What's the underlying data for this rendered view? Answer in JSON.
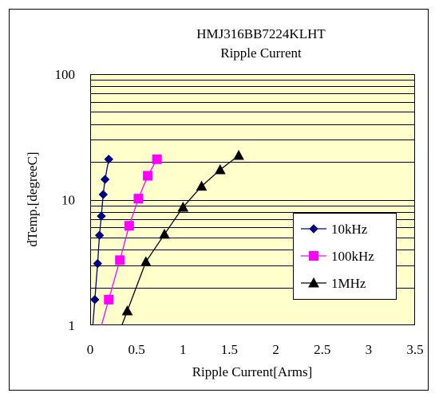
{
  "chart_data": {
    "type": "line",
    "title": "HMJ316BB7224KLHT",
    "subtitle": "Ripple Current",
    "xlabel": "Ripple Current[Arms]",
    "ylabel": "dTemp.[degreeC]",
    "xlim": [
      0,
      3.5
    ],
    "ylim": [
      1,
      100
    ],
    "yscale": "log",
    "x_ticks": [
      "0",
      "0.5",
      "1",
      "1.5",
      "2",
      "2.5",
      "3",
      "3.5"
    ],
    "y_ticks": [
      "1",
      "10",
      "100"
    ],
    "grid": "horizontal minor log gridlines",
    "legend_position": "inside-bottom-right",
    "plot_background": "#ffffcc",
    "series": [
      {
        "name": "10kHz",
        "color": "#000080",
        "marker": "diamond",
        "points": [
          [
            0.05,
            1.6
          ],
          [
            0.08,
            3.1
          ],
          [
            0.1,
            5.2
          ],
          [
            0.12,
            7.4
          ],
          [
            0.14,
            11
          ],
          [
            0.16,
            14.5
          ],
          [
            0.2,
            21
          ]
        ]
      },
      {
        "name": "100kHz",
        "color": "#ff00ff",
        "marker": "square",
        "points": [
          [
            0.2,
            1.6
          ],
          [
            0.32,
            3.3
          ],
          [
            0.42,
            6.2
          ],
          [
            0.52,
            10.2
          ],
          [
            0.62,
            15.5
          ],
          [
            0.72,
            21
          ]
        ]
      },
      {
        "name": "1MHz",
        "color": "#000000",
        "marker": "triangle",
        "points": [
          [
            0.4,
            1.3
          ],
          [
            0.6,
            3.2
          ],
          [
            0.8,
            5.3
          ],
          [
            1.0,
            8.7
          ],
          [
            1.2,
            12.8
          ],
          [
            1.4,
            17.3
          ],
          [
            1.6,
            22.5
          ]
        ]
      }
    ]
  }
}
